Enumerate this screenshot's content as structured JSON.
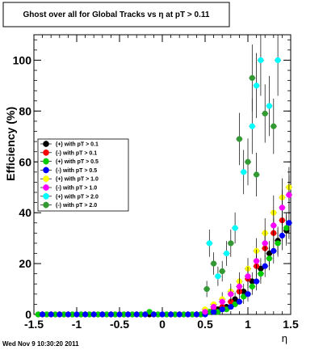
{
  "chart_data": {
    "type": "scatter",
    "title": "Ghost over all for Global Tracks vs η at pT > 0.11",
    "xlabel": "η",
    "ylabel": "Efficiency (%)",
    "xlim": [
      -1.5,
      1.5
    ],
    "ylim": [
      0,
      110
    ],
    "x_ticks": [
      -1.5,
      -1,
      -0.5,
      0,
      0.5,
      1,
      1.5
    ],
    "x_tick_labels": [
      "-1.5",
      "-1",
      "-0.5",
      "0",
      "0.5",
      "1",
      "1.5"
    ],
    "y_ticks": [
      0,
      20,
      40,
      60,
      80,
      100
    ],
    "y_tick_labels": [
      "0",
      "20",
      "40",
      "60",
      "80",
      "100"
    ],
    "legend_position": "left-middle",
    "timestamp": "Wed Nov  9 10:30:20 2011",
    "series": [
      {
        "name": "(+) with pT > 0.1",
        "color": "#000000",
        "x": [
          -1.45,
          -1.35,
          -1.25,
          -1.15,
          -1.05,
          -0.95,
          -0.85,
          -0.75,
          -0.65,
          -0.55,
          -0.45,
          -0.35,
          -0.25,
          -0.15,
          -0.05,
          0.05,
          0.15,
          0.25,
          0.35,
          0.45,
          0.55,
          0.65,
          0.75,
          0.85,
          0.95,
          1.05,
          1.15,
          1.25,
          1.35,
          1.45
        ],
        "y": [
          0,
          0,
          0,
          0,
          0,
          0,
          0,
          0,
          0,
          0,
          0,
          0,
          0,
          0,
          0,
          0,
          0,
          0,
          0,
          0,
          1,
          2,
          3,
          6,
          9,
          13,
          18,
          24,
          29,
          33
        ]
      },
      {
        "name": "(-) with pT > 0.1",
        "color": "#ff0000",
        "x": [
          -1.4,
          -1.3,
          -1.2,
          -1.1,
          -1.0,
          -0.9,
          -0.8,
          -0.7,
          -0.6,
          -0.5,
          -0.4,
          -0.3,
          -0.2,
          -0.1,
          0.0,
          0.1,
          0.2,
          0.3,
          0.4,
          0.5,
          0.6,
          0.7,
          0.8,
          0.9,
          1.0,
          1.1,
          1.2,
          1.3,
          1.4
        ],
        "y": [
          0,
          0,
          0,
          0,
          0,
          0,
          0,
          0,
          0,
          0,
          0,
          0,
          0,
          0,
          0,
          0,
          0,
          0,
          0,
          1,
          2,
          3,
          5,
          9,
          14,
          19,
          26,
          32,
          37
        ]
      },
      {
        "name": "(+) with pT > 0.5",
        "color": "#00cc00",
        "x": [
          -1.45,
          -1.35,
          -1.25,
          -1.15,
          -1.05,
          -0.95,
          -0.85,
          -0.75,
          -0.65,
          -0.55,
          -0.45,
          -0.35,
          -0.25,
          -0.15,
          -0.05,
          0.05,
          0.15,
          0.25,
          0.35,
          0.45,
          0.55,
          0.65,
          0.75,
          0.85,
          0.95,
          1.05,
          1.15,
          1.25,
          1.35,
          1.45
        ],
        "y": [
          0,
          0,
          0,
          0,
          0,
          0,
          0,
          0,
          0,
          0,
          0,
          0,
          0,
          1,
          0,
          0,
          0,
          0,
          0,
          0,
          1,
          1,
          2,
          4,
          7,
          11,
          16,
          22,
          28,
          34
        ]
      },
      {
        "name": "(-) with pT > 0.5",
        "color": "#0000ff",
        "x": [
          -1.4,
          -1.3,
          -1.2,
          -1.1,
          -1.0,
          -0.9,
          -0.8,
          -0.7,
          -0.6,
          -0.5,
          -0.4,
          -0.3,
          -0.2,
          -0.1,
          0.0,
          0.1,
          0.2,
          0.3,
          0.4,
          0.5,
          0.6,
          0.7,
          0.8,
          0.9,
          1.0,
          1.1,
          1.2,
          1.3,
          1.4,
          1.48
        ],
        "y": [
          0,
          0,
          0,
          0,
          0,
          0,
          0,
          0,
          0,
          0,
          0,
          0,
          0,
          0,
          0,
          0,
          0,
          0,
          0,
          0,
          1,
          2,
          3,
          5,
          8,
          13,
          19,
          25,
          31,
          36
        ]
      },
      {
        "name": "(+) with pT > 1.0",
        "color": "#ffff00",
        "x": [
          0.5,
          0.6,
          0.7,
          0.8,
          0.9,
          1.0,
          1.1,
          1.2,
          1.3,
          1.4,
          1.48
        ],
        "y": [
          2,
          4,
          6,
          9,
          13,
          18,
          25,
          32,
          40,
          46,
          50
        ]
      },
      {
        "name": "(-) with pT > 1.0",
        "color": "#ff00ff",
        "x": [
          0.5,
          0.6,
          0.7,
          0.8,
          0.9,
          1.0,
          1.1,
          1.2,
          1.3,
          1.4,
          1.48
        ],
        "y": [
          1,
          3,
          5,
          8,
          11,
          15,
          21,
          28,
          35,
          42,
          47
        ]
      },
      {
        "name": "(+) with pT > 2.0",
        "color": "#00ffff",
        "x": [
          0.55,
          0.65,
          0.75,
          0.85,
          0.95,
          1.05,
          1.1,
          1.15,
          1.25,
          1.35
        ],
        "y": [
          28,
          15,
          24,
          34,
          56,
          74,
          90,
          100,
          82,
          100
        ]
      },
      {
        "name": "(-) with pT > 2.0",
        "color": "#339933",
        "x": [
          0.52,
          0.6,
          0.7,
          0.8,
          0.9,
          1.0,
          1.05,
          1.1,
          1.2,
          1.3
        ],
        "y": [
          10,
          20,
          17,
          28,
          69,
          60,
          93,
          55,
          79,
          74
        ]
      }
    ]
  }
}
